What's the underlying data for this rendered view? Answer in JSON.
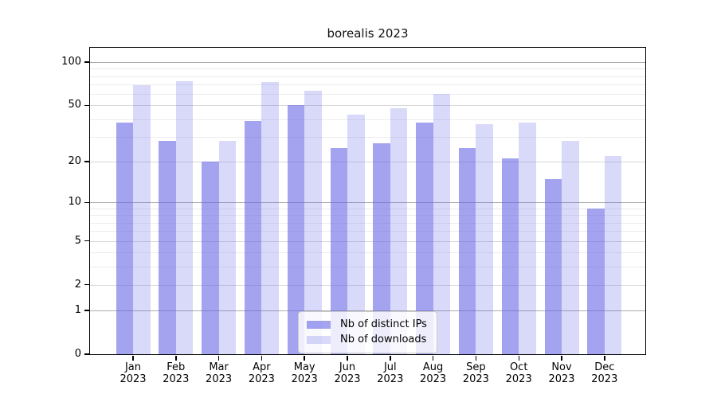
{
  "title": "borealis 2023",
  "chart_data": {
    "type": "bar",
    "title": "borealis 2023",
    "categories": [
      "Jan",
      "Feb",
      "Mar",
      "Apr",
      "May",
      "Jun",
      "Jul",
      "Aug",
      "Sep",
      "Oct",
      "Nov",
      "Dec"
    ],
    "category_year": "2023",
    "series": [
      {
        "name": "Nb of distinct IPs",
        "color": "#6666e6",
        "alpha": 0.6,
        "values": [
          38,
          28,
          20,
          39,
          50,
          25,
          27,
          38,
          25,
          21,
          15,
          9
        ]
      },
      {
        "name": "Nb of downloads",
        "color": "#6666e6",
        "alpha": 0.25,
        "values": [
          69,
          74,
          28,
          73,
          63,
          43,
          48,
          60,
          37,
          38,
          28,
          22
        ]
      }
    ],
    "xlabel": "",
    "ylabel": "",
    "yscale": "log1p",
    "ylim": [
      0,
      126
    ],
    "y_major_ticks": [
      0,
      1,
      2,
      5,
      10,
      20,
      50,
      100
    ],
    "y_minor_ticks": [
      3,
      4,
      6,
      7,
      8,
      9,
      30,
      40,
      60,
      70,
      80,
      90
    ],
    "grid": true,
    "legend_position": "lower center"
  },
  "colors": {
    "background": "#ffffff",
    "bar_dark_composited": "#a3a3f0",
    "bar_light_composited": "#d9d9f9",
    "decade_gridline": "#ababab",
    "major_gridline": "#d8d8d8",
    "minor_gridline": "#ececec",
    "axis": "#000000",
    "legend_border": "#cccccc"
  }
}
